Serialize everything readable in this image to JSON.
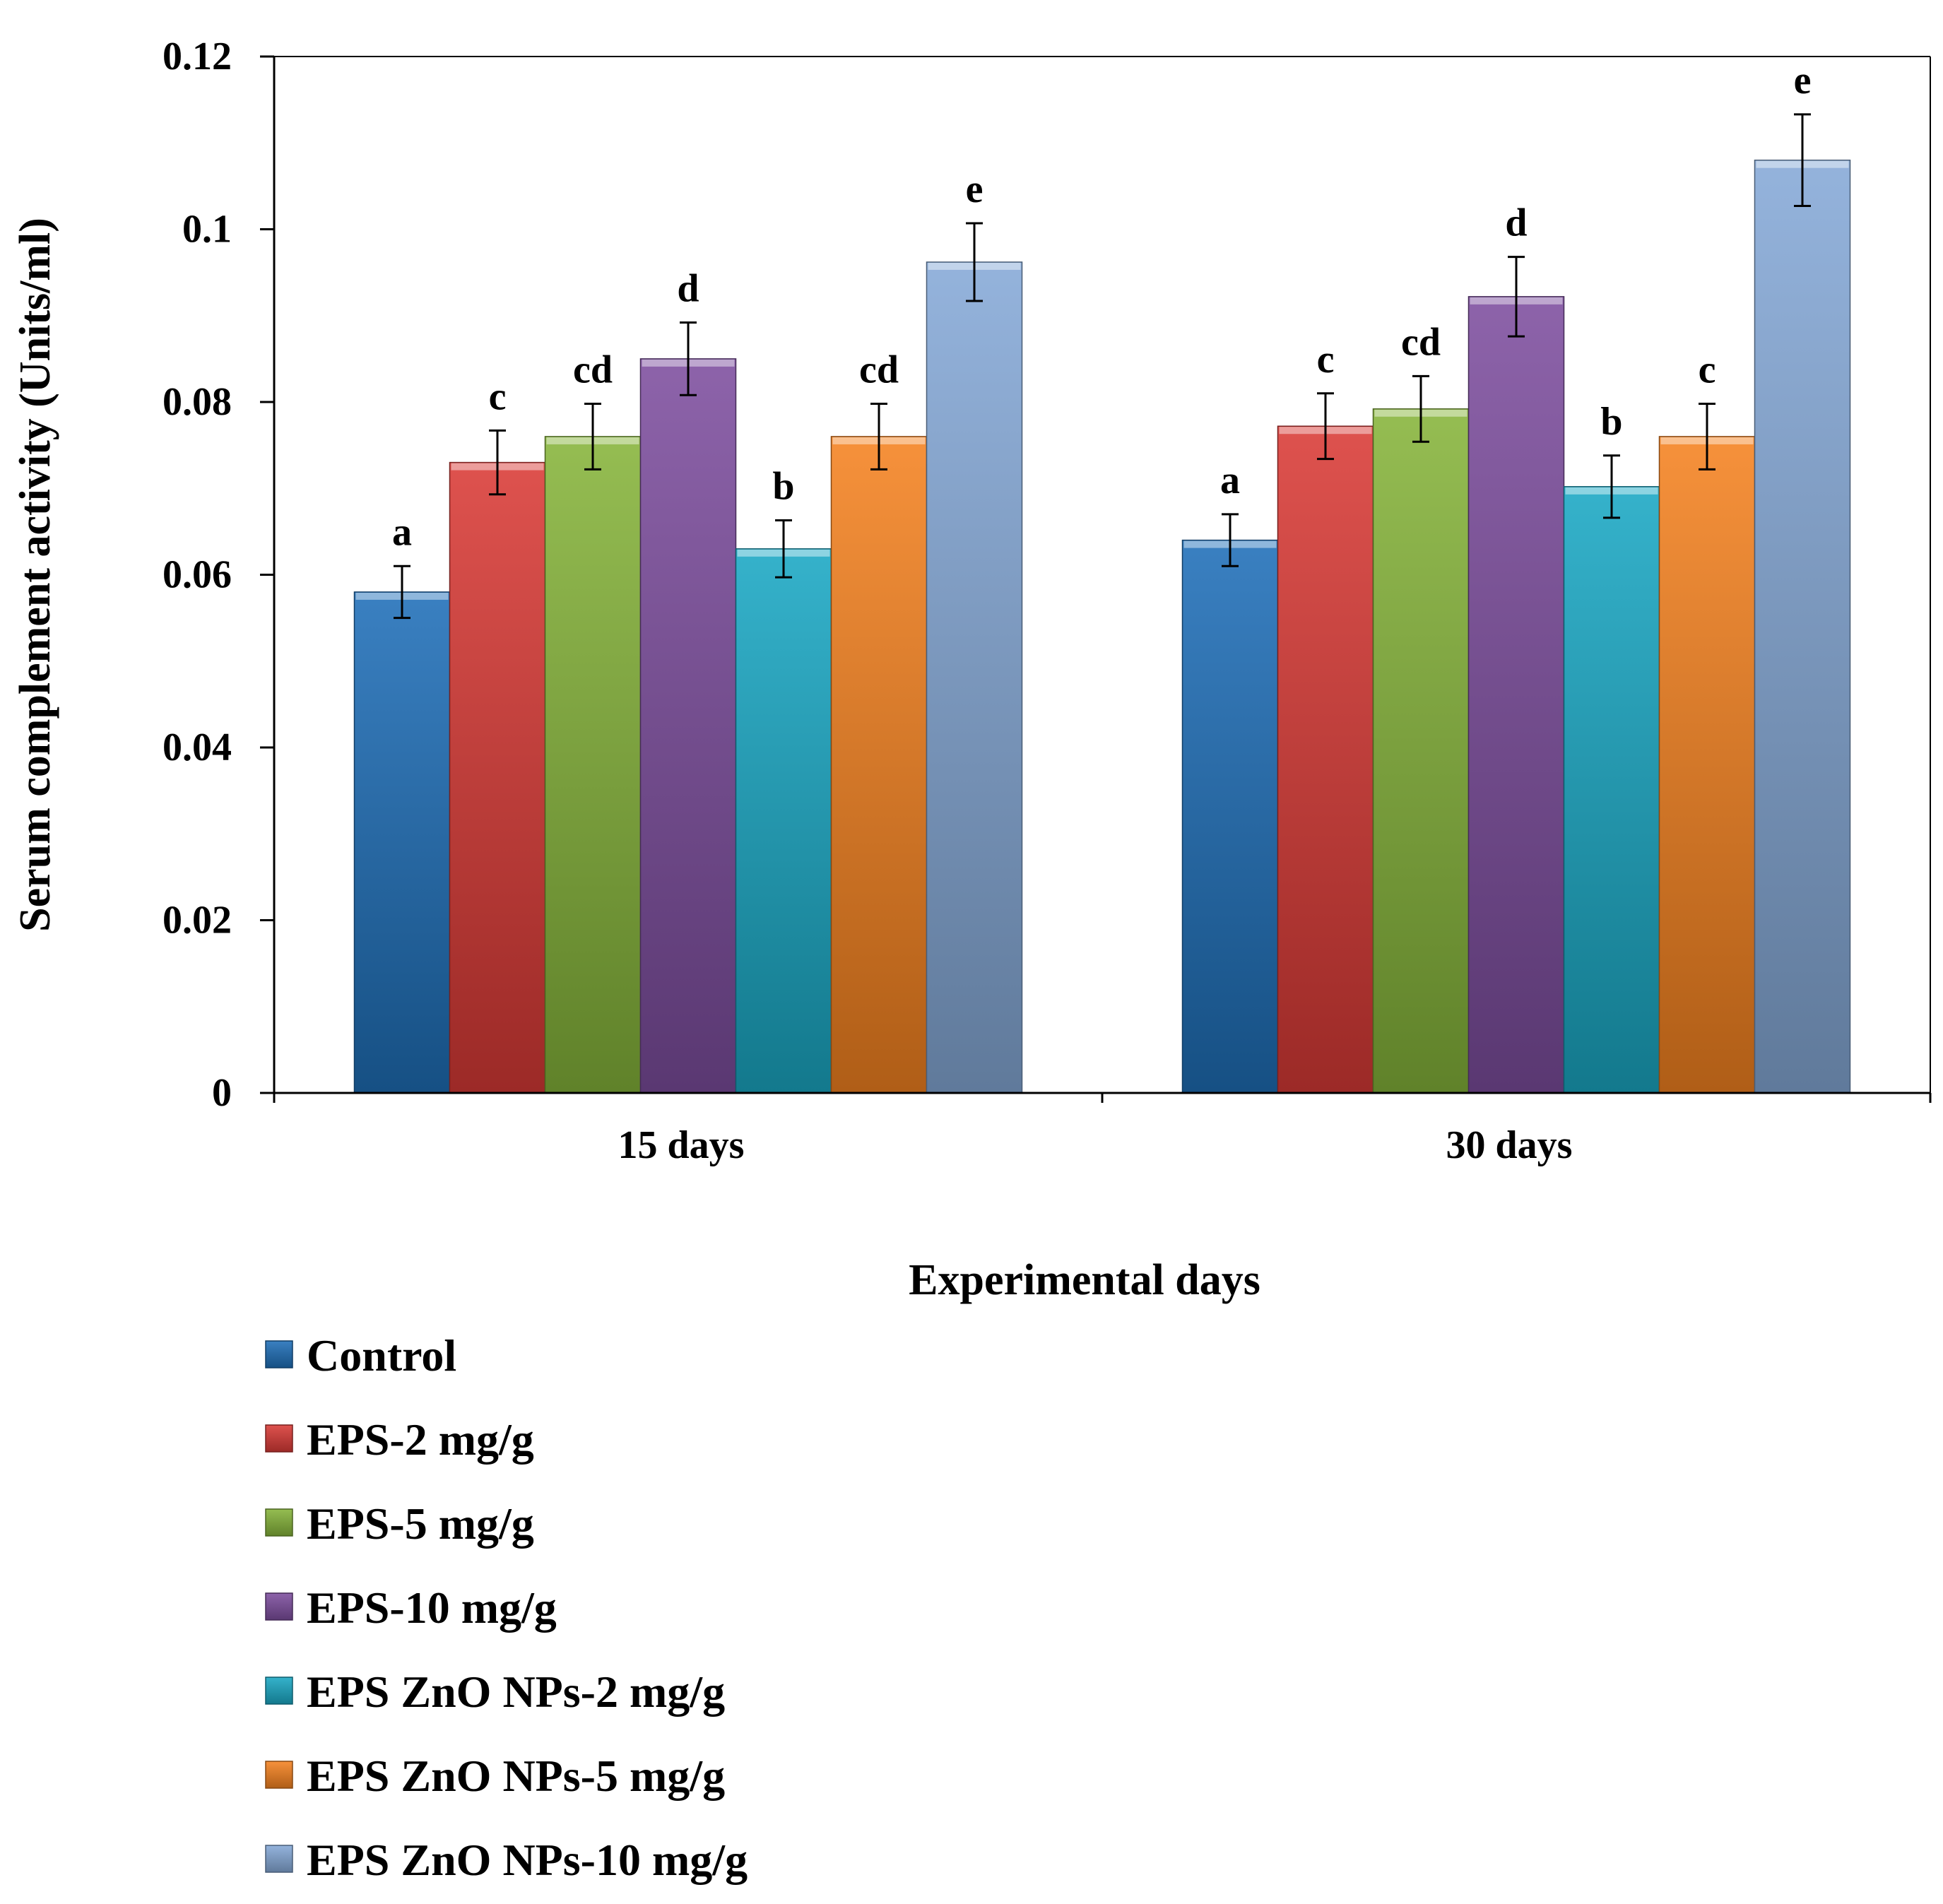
{
  "chart_data": {
    "type": "bar",
    "title": "",
    "xlabel": "Experimental  days",
    "ylabel": "Serum complement  activity (Units/ml)",
    "ylim": [
      0,
      0.12
    ],
    "yticks": [
      "0",
      "0.02",
      "0.04",
      "0.06",
      "0.08",
      "0.1",
      "0.12"
    ],
    "grid": false,
    "legend_position": "bottom-left",
    "categories": [
      "15 days",
      "30 days"
    ],
    "series": [
      {
        "name": "Control",
        "color": "#1f6fb8",
        "values": [
          0.058,
          0.064
        ],
        "errors": [
          0.003,
          0.003
        ],
        "labels": [
          "a",
          "a"
        ]
      },
      {
        "name": "EPS-2 mg/g",
        "color": "#d93a36",
        "values": [
          0.073,
          0.0772
        ],
        "errors": [
          0.0037,
          0.0038
        ],
        "labels": [
          "c",
          "c"
        ]
      },
      {
        "name": "EPS-5 mg/g",
        "color": "#86b43a",
        "values": [
          0.076,
          0.0792
        ],
        "errors": [
          0.0038,
          0.0038
        ],
        "labels": [
          "cd",
          "cd"
        ]
      },
      {
        "name": "EPS-10 mg/g",
        "color": "#7d4e9e",
        "values": [
          0.085,
          0.0922
        ],
        "errors": [
          0.0042,
          0.0046
        ],
        "labels": [
          "d",
          "d"
        ]
      },
      {
        "name": "EPS ZnO NPs-2 mg/g",
        "color": "#1aa8c4",
        "values": [
          0.063,
          0.0702
        ],
        "errors": [
          0.0033,
          0.0036
        ],
        "labels": [
          "b",
          "b"
        ]
      },
      {
        "name": "EPS ZnO NPs-5 mg/g",
        "color": "#f58220",
        "values": [
          0.076,
          0.076
        ],
        "errors": [
          0.0038,
          0.0038
        ],
        "labels": [
          "cd",
          "c"
        ]
      },
      {
        "name": "EPS ZnO NPs-10 mg/g",
        "color": "#85a9d7",
        "values": [
          0.0962,
          0.108
        ],
        "errors": [
          0.0045,
          0.0053
        ],
        "labels": [
          "e",
          "e"
        ]
      }
    ]
  }
}
